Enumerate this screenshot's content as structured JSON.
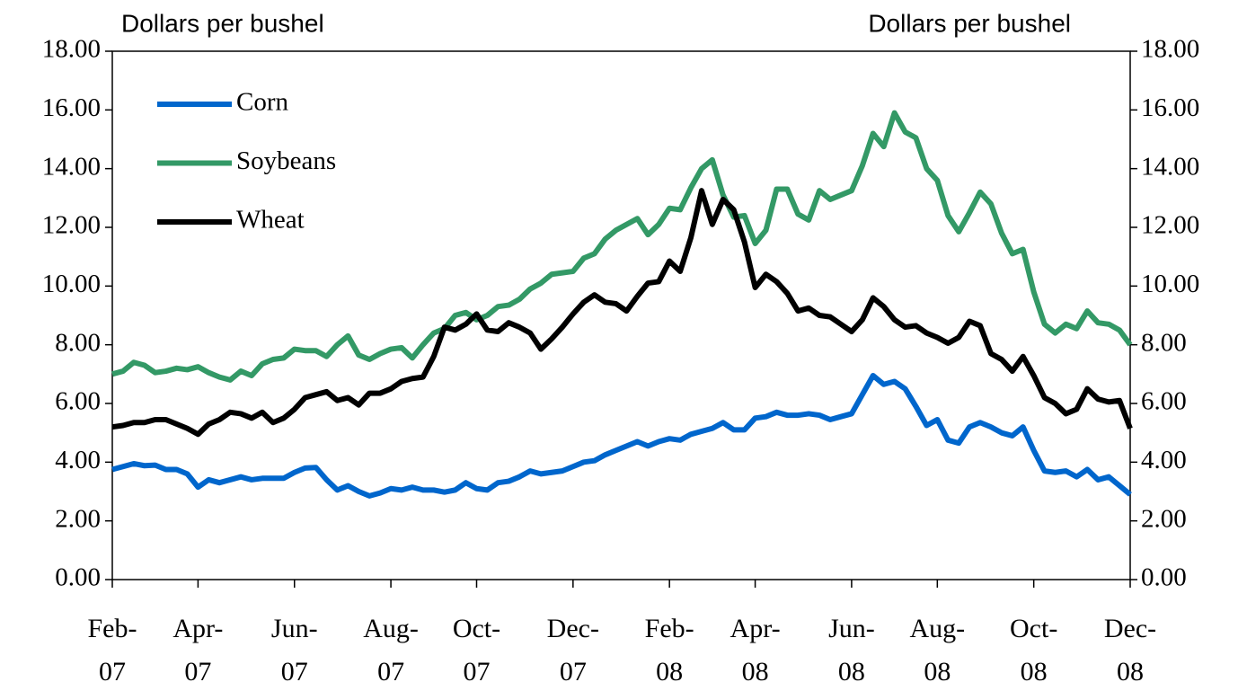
{
  "chart_data": {
    "type": "line",
    "y_label": "Dollars per bushel",
    "y2_label": "Dollars per bushel",
    "categories": [
      "Feb-07",
      null,
      null,
      null,
      null,
      null,
      null,
      null,
      "Apr-07",
      null,
      null,
      null,
      null,
      null,
      null,
      null,
      null,
      "Jun-07",
      null,
      null,
      null,
      null,
      null,
      null,
      null,
      null,
      "Aug-07",
      null,
      null,
      null,
      null,
      null,
      null,
      null,
      "Oct-07",
      null,
      null,
      null,
      null,
      null,
      null,
      null,
      null,
      "Dec-07",
      null,
      null,
      null,
      null,
      null,
      null,
      null,
      null,
      "Feb-08",
      null,
      null,
      null,
      null,
      null,
      null,
      null,
      "Apr-08",
      null,
      null,
      null,
      null,
      null,
      null,
      null,
      null,
      "Jun-08",
      null,
      null,
      null,
      null,
      null,
      null,
      null,
      "Aug-08",
      null,
      null,
      null,
      null,
      null,
      null,
      null,
      null,
      "Oct-08",
      null,
      null,
      null,
      null,
      null,
      null,
      null,
      null,
      "Dec-08"
    ],
    "series": [
      {
        "name": "Corn",
        "color": "#0066cc",
        "values": [
          3.75,
          3.85,
          3.95,
          3.88,
          3.9,
          3.75,
          3.75,
          3.6,
          3.15,
          3.4,
          3.3,
          3.4,
          3.5,
          3.4,
          3.45,
          3.45,
          3.45,
          3.65,
          3.8,
          3.82,
          3.4,
          3.05,
          3.2,
          3.0,
          2.85,
          2.95,
          3.1,
          3.05,
          3.15,
          3.05,
          3.05,
          2.98,
          3.05,
          3.3,
          3.1,
          3.05,
          3.3,
          3.35,
          3.5,
          3.7,
          3.6,
          3.65,
          3.7,
          3.85,
          4.0,
          4.05,
          4.25,
          4.4,
          4.55,
          4.7,
          4.55,
          4.7,
          4.8,
          4.75,
          4.95,
          5.05,
          5.15,
          5.35,
          5.1,
          5.1,
          5.5,
          5.55,
          5.7,
          5.6,
          5.6,
          5.65,
          5.6,
          5.45,
          5.55,
          5.65,
          6.3,
          6.95,
          6.65,
          6.75,
          6.5,
          5.9,
          5.25,
          5.45,
          4.75,
          4.65,
          5.2,
          5.35,
          5.2,
          5.0,
          4.9,
          5.2,
          4.4,
          3.7,
          3.65,
          3.7,
          3.5,
          3.75,
          3.4,
          3.5,
          3.2,
          2.9
        ]
      },
      {
        "name": "Soybeans",
        "color": "#339966",
        "values": [
          7.0,
          7.1,
          7.4,
          7.3,
          7.05,
          7.1,
          7.2,
          7.15,
          7.25,
          7.05,
          6.9,
          6.8,
          7.1,
          6.95,
          7.35,
          7.5,
          7.55,
          7.85,
          7.8,
          7.8,
          7.6,
          8.0,
          8.3,
          7.65,
          7.5,
          7.7,
          7.85,
          7.9,
          7.55,
          8.0,
          8.4,
          8.55,
          9.0,
          9.1,
          8.85,
          9.0,
          9.3,
          9.35,
          9.55,
          9.9,
          10.1,
          10.4,
          10.45,
          10.5,
          10.95,
          11.1,
          11.6,
          11.9,
          12.1,
          12.3,
          11.75,
          12.1,
          12.65,
          12.6,
          13.35,
          14.0,
          14.3,
          13.1,
          12.35,
          12.4,
          11.45,
          11.9,
          13.3,
          13.3,
          12.45,
          12.25,
          13.25,
          12.95,
          13.1,
          13.25,
          14.1,
          15.2,
          14.75,
          15.9,
          15.25,
          15.05,
          14.0,
          13.6,
          12.4,
          11.85,
          12.5,
          13.2,
          12.8,
          11.8,
          11.1,
          11.25,
          9.8,
          8.7,
          8.4,
          8.7,
          8.55,
          9.15,
          8.75,
          8.7,
          8.5,
          8.0
        ]
      },
      {
        "name": "Wheat",
        "color": "#000000",
        "values": [
          5.2,
          5.25,
          5.35,
          5.35,
          5.45,
          5.45,
          5.3,
          5.15,
          4.95,
          5.3,
          5.45,
          5.7,
          5.65,
          5.5,
          5.7,
          5.35,
          5.5,
          5.8,
          6.2,
          6.3,
          6.4,
          6.1,
          6.2,
          5.95,
          6.35,
          6.35,
          6.5,
          6.75,
          6.85,
          6.9,
          7.6,
          8.6,
          8.5,
          8.7,
          9.05,
          8.5,
          8.45,
          8.75,
          8.6,
          8.4,
          7.85,
          8.2,
          8.6,
          9.05,
          9.45,
          9.7,
          9.45,
          9.4,
          9.15,
          9.65,
          10.1,
          10.15,
          10.85,
          10.5,
          11.65,
          13.25,
          12.1,
          12.95,
          12.6,
          11.5,
          9.95,
          10.4,
          10.15,
          9.75,
          9.15,
          9.25,
          9.0,
          8.95,
          8.7,
          8.45,
          8.85,
          9.6,
          9.3,
          8.85,
          8.6,
          8.65,
          8.4,
          8.25,
          8.05,
          8.25,
          8.8,
          8.65,
          7.7,
          7.5,
          7.1,
          7.6,
          6.95,
          6.2,
          6.0,
          5.65,
          5.8,
          6.5,
          6.15,
          6.05,
          6.1,
          5.15
        ]
      }
    ],
    "ylim": [
      0,
      18
    ],
    "yticks": [
      {
        "value": 0,
        "label": "0.00"
      },
      {
        "value": 2,
        "label": "2.00"
      },
      {
        "value": 4,
        "label": "4.00"
      },
      {
        "value": 6,
        "label": "6.00"
      },
      {
        "value": 8,
        "label": "8.00"
      },
      {
        "value": 10,
        "label": "10.00"
      },
      {
        "value": 12,
        "label": "12.00"
      },
      {
        "value": 14,
        "label": "14.00"
      },
      {
        "value": 16,
        "label": "16.00"
      },
      {
        "value": 18,
        "label": "18.00"
      }
    ],
    "y2lim": [
      0,
      18
    ],
    "y2ticks": [
      {
        "value": 0,
        "label": "0.00"
      },
      {
        "value": 2,
        "label": "2.00"
      },
      {
        "value": 4,
        "label": "4.00"
      },
      {
        "value": 6,
        "label": "6.00"
      },
      {
        "value": 8,
        "label": "8.00"
      },
      {
        "value": 10,
        "label": "10.00"
      },
      {
        "value": 12,
        "label": "12.00"
      },
      {
        "value": 14,
        "label": "14.00"
      },
      {
        "value": 16,
        "label": "16.00"
      },
      {
        "value": 18,
        "label": "18.00"
      }
    ],
    "legend": "top-left",
    "grid": false
  }
}
